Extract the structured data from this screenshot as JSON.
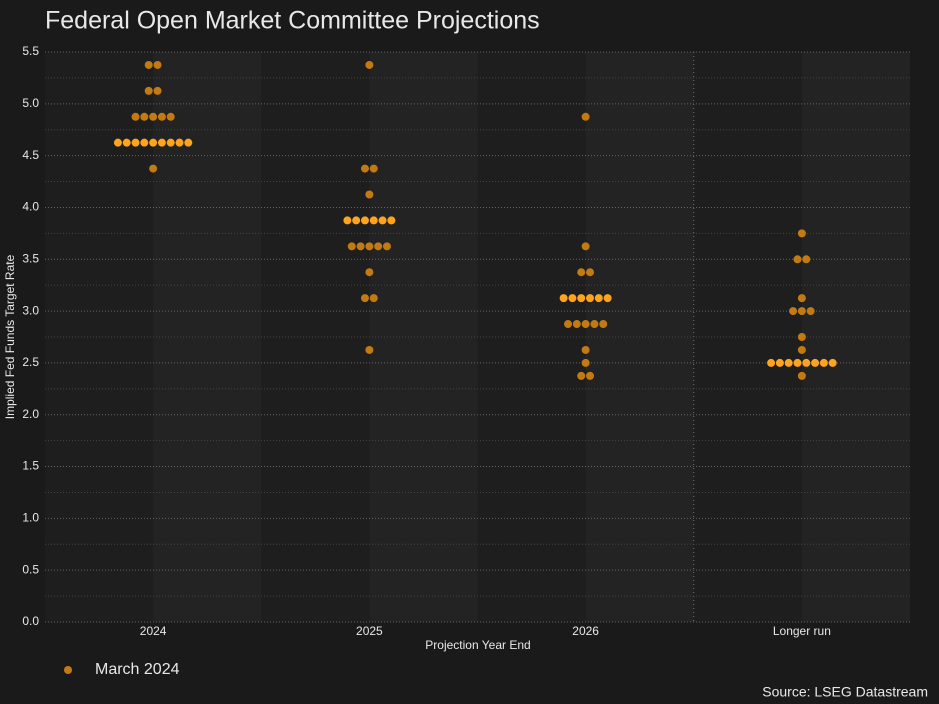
{
  "chart_data": {
    "type": "dot",
    "title": "Federal Open Market Committee Projections",
    "x_label": "Projection Year End",
    "y_label": "Implied Fed Funds Target Rate",
    "source": "Source: LSEG Datastream",
    "categories": [
      "2024",
      "2025",
      "2026",
      "Longer run"
    ],
    "series": [
      {
        "name": "March 2024",
        "color": "#c47a12",
        "values": [
          [
            5.375,
            5.375,
            5.125,
            5.125,
            4.875,
            4.875,
            4.875,
            4.875,
            4.875,
            4.625,
            4.625,
            4.625,
            4.625,
            4.625,
            4.625,
            4.625,
            4.625,
            4.625,
            4.375
          ],
          [
            5.375,
            4.375,
            4.375,
            4.125,
            3.875,
            3.875,
            3.875,
            3.875,
            3.875,
            3.875,
            3.625,
            3.625,
            3.625,
            3.625,
            3.625,
            3.375,
            3.125,
            3.125,
            2.625
          ],
          [
            4.875,
            3.625,
            3.375,
            3.375,
            3.125,
            3.125,
            3.125,
            3.125,
            3.125,
            3.125,
            2.875,
            2.875,
            2.875,
            2.875,
            2.875,
            2.625,
            2.5,
            2.375,
            2.375
          ],
          [
            3.75,
            3.5,
            3.5,
            3.125,
            3.0,
            3.0,
            3.0,
            2.75,
            2.625,
            2.5,
            2.5,
            2.5,
            2.5,
            2.5,
            2.5,
            2.5,
            2.5,
            2.375
          ]
        ]
      }
    ],
    "medians": [
      4.625,
      3.875,
      3.125,
      2.5
    ],
    "median_color": "#ffa41c",
    "ylim": [
      0,
      5.5
    ],
    "yticks": [
      {
        "value": 0,
        "label": "0.0"
      },
      0.5,
      {
        "value": 1,
        "label": "1.0"
      },
      1.5,
      {
        "value": 2,
        "label": "2.0"
      },
      2.5,
      {
        "value": 3,
        "label": "3.0"
      },
      3.5,
      {
        "value": 4,
        "label": "4.0"
      },
      4.5,
      {
        "value": 5,
        "label": "5.0"
      },
      5.5
    ],
    "grid": true
  }
}
